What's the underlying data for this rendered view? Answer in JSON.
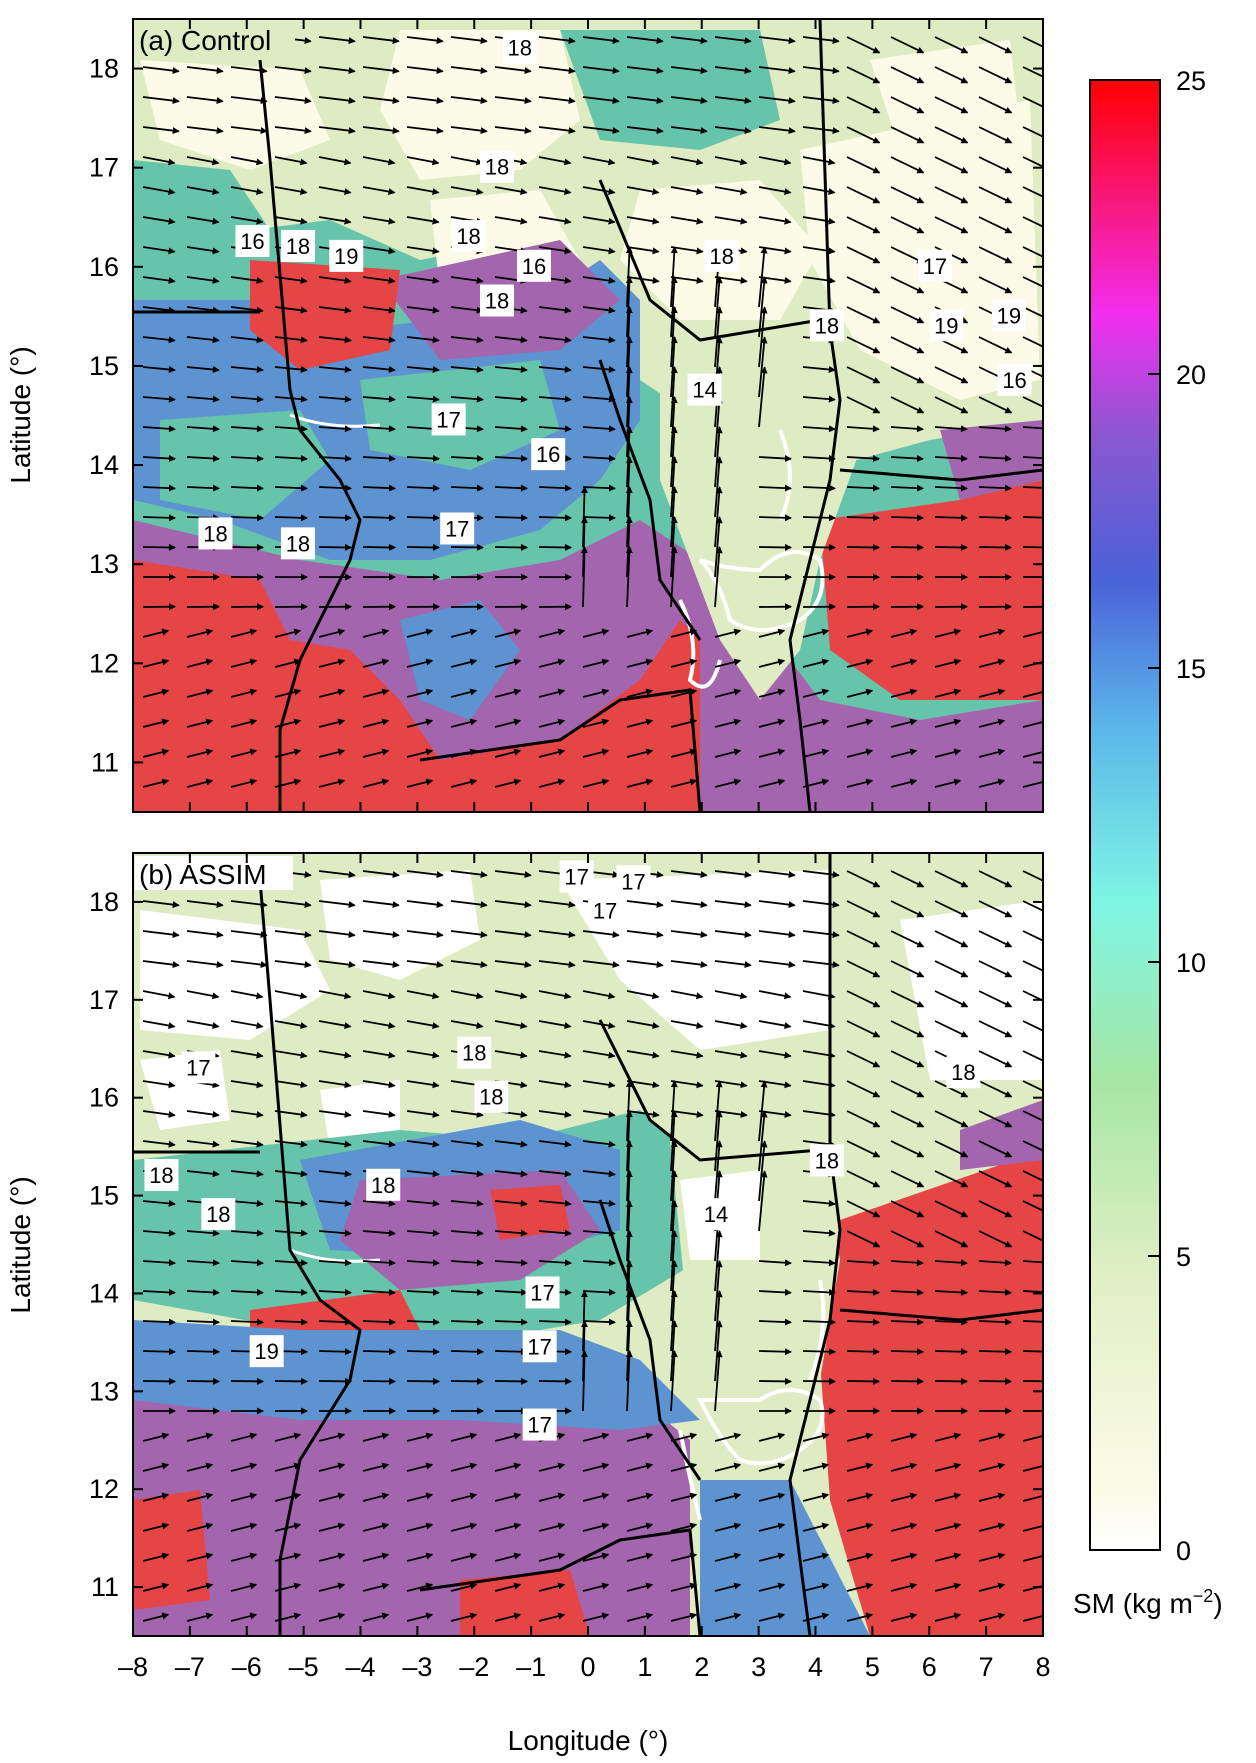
{
  "figure": {
    "xlabel": "Longitude (°)",
    "ylabel": "Latitude (°)",
    "xlim": [
      -8,
      8
    ],
    "ylim": [
      10.5,
      18.5
    ],
    "x_ticks": [
      "–8",
      "–7",
      "–6",
      "–5",
      "–4",
      "–3",
      "–2",
      "–1",
      "0",
      "1",
      "2",
      "3",
      "4",
      "5",
      "6",
      "7",
      "8"
    ],
    "y_ticks": [
      "11",
      "12",
      "13",
      "14",
      "15",
      "16",
      "17",
      "18"
    ]
  },
  "colorbar": {
    "label": "SM (kg m",
    "label_exp": "−2",
    "label_close": ")",
    "range": [
      0,
      25
    ],
    "ticks": [
      "0",
      "5",
      "10",
      "15",
      "20",
      "25"
    ],
    "stops": [
      "#ffffff",
      "#fbfbe8",
      "#e3efc6",
      "#9fe6a3",
      "#7ff7e6",
      "#5ab4e8",
      "#4a60d8",
      "#8b58d0",
      "#f52ef0",
      "#ff0000"
    ]
  },
  "colors": {
    "very_dry": "#fcfbe7",
    "dry": "#dfebc3",
    "moist": "#66c4aa",
    "wetter": "#5d93d0",
    "wet": "#a365ad",
    "very_wet": "#e64545",
    "coast_white": "#ffffff"
  },
  "panels": [
    {
      "label": "(a) Control",
      "contour_labels": [
        {
          "text": "18",
          "lon": -1.2,
          "lat": 18.2
        },
        {
          "text": "18",
          "lon": -1.6,
          "lat": 17.0
        },
        {
          "text": "18",
          "lon": -2.1,
          "lat": 16.3
        },
        {
          "text": "16",
          "lon": -5.9,
          "lat": 16.25
        },
        {
          "text": "18",
          "lon": -5.1,
          "lat": 16.2
        },
        {
          "text": "19",
          "lon": -4.25,
          "lat": 16.1
        },
        {
          "text": "16",
          "lon": -0.95,
          "lat": 16.0
        },
        {
          "text": "18",
          "lon": -1.6,
          "lat": 15.65
        },
        {
          "text": "18",
          "lon": 2.35,
          "lat": 16.1
        },
        {
          "text": "17",
          "lon": 6.1,
          "lat": 16.0
        },
        {
          "text": "18",
          "lon": 4.2,
          "lat": 15.4
        },
        {
          "text": "19",
          "lon": 6.3,
          "lat": 15.4
        },
        {
          "text": "19",
          "lon": 7.4,
          "lat": 15.5
        },
        {
          "text": "16",
          "lon": 7.5,
          "lat": 14.85
        },
        {
          "text": "14",
          "lon": 2.05,
          "lat": 14.75
        },
        {
          "text": "17",
          "lon": -2.45,
          "lat": 14.45
        },
        {
          "text": "16",
          "lon": -0.7,
          "lat": 14.1
        },
        {
          "text": "17",
          "lon": -2.3,
          "lat": 13.35
        },
        {
          "text": "18",
          "lon": -6.55,
          "lat": 13.3
        },
        {
          "text": "18",
          "lon": -5.1,
          "lat": 13.2
        }
      ]
    },
    {
      "label": "(b) ASSIM",
      "contour_labels": [
        {
          "text": "17",
          "lon": -0.2,
          "lat": 18.25
        },
        {
          "text": "17",
          "lon": 0.8,
          "lat": 18.2
        },
        {
          "text": "17",
          "lon": 0.3,
          "lat": 17.9
        },
        {
          "text": "17",
          "lon": -6.85,
          "lat": 16.3
        },
        {
          "text": "18",
          "lon": -2.0,
          "lat": 16.45
        },
        {
          "text": "18",
          "lon": -1.7,
          "lat": 16.0
        },
        {
          "text": "18",
          "lon": 6.6,
          "lat": 16.25
        },
        {
          "text": "18",
          "lon": 4.2,
          "lat": 15.35
        },
        {
          "text": "18",
          "lon": -7.5,
          "lat": 15.2
        },
        {
          "text": "18",
          "lon": -6.5,
          "lat": 14.8
        },
        {
          "text": "18",
          "lon": -3.6,
          "lat": 15.1
        },
        {
          "text": "14",
          "lon": 2.25,
          "lat": 14.8
        },
        {
          "text": "17",
          "lon": -0.8,
          "lat": 14.0
        },
        {
          "text": "19",
          "lon": -5.65,
          "lat": 13.4
        },
        {
          "text": "17",
          "lon": -0.85,
          "lat": 13.45
        },
        {
          "text": "17",
          "lon": -0.85,
          "lat": 12.65
        }
      ]
    }
  ]
}
